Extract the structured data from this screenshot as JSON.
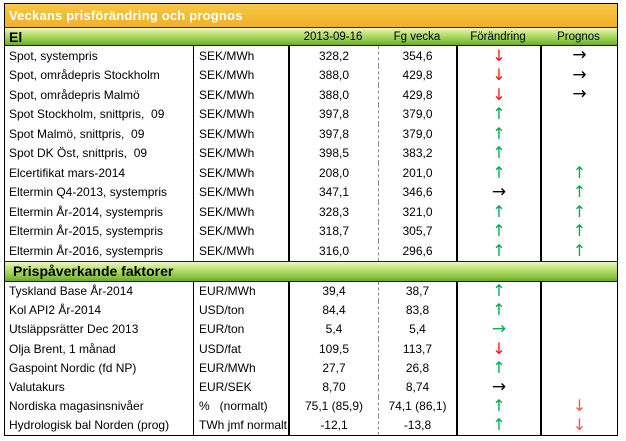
{
  "title": "Veckans prisförändring och prognos",
  "columns": {
    "current": "2013-09-16",
    "previous": "Fg vecka",
    "change": "Förändring",
    "forecast": "Prognos"
  },
  "arrows": {
    "up": {
      "glyph": "↑",
      "color": "#00A850",
      "orient": "vert"
    },
    "down": {
      "glyph": "↓",
      "color": "#FF1511",
      "orient": "vert"
    },
    "right": {
      "glyph": "→",
      "color": "#000000",
      "orient": "horiz"
    },
    "right-green": {
      "glyph": "→",
      "color": "#00B44A",
      "orient": "horiz"
    },
    "down-light": {
      "glyph": "↓",
      "color": "#FF5743",
      "orient": "vert"
    }
  },
  "colors": {
    "title_bar": "#F3BA33",
    "band_green_light": "#EEF7C6",
    "band_green_dark": "#66A82C",
    "arrow_up_green": "#00A850",
    "arrow_down_red": "#FF1511",
    "arrow_forecast_down_red": "#FF5743"
  },
  "sections": [
    {
      "name": "El",
      "rows": [
        {
          "label": "Spot, systempris",
          "unit": "SEK/MWh",
          "current": "328,2",
          "previous": "354,6",
          "change": "down",
          "forecast": "right"
        },
        {
          "label": "Spot, områdepris Stockholm",
          "unit": "SEK/MWh",
          "current": "388,0",
          "previous": "429,8",
          "change": "down",
          "forecast": "right"
        },
        {
          "label": "Spot, områdepris Malmö",
          "unit": "SEK/MWh",
          "current": "388,0",
          "previous": "429,8",
          "change": "down",
          "forecast": "right"
        },
        {
          "label": "Spot Stockholm, snittpris,  09",
          "unit": "SEK/MWh",
          "current": "397,8",
          "previous": "379,0",
          "change": "up",
          "forecast": ""
        },
        {
          "label": "Spot Malmö, snittpris,  09",
          "unit": "SEK/MWh",
          "current": "397,8",
          "previous": "379,0",
          "change": "up",
          "forecast": ""
        },
        {
          "label": "Spot DK Öst, snittpris,  09",
          "unit": "SEK/MWh",
          "current": "398,5",
          "previous": "383,2",
          "change": "up",
          "forecast": ""
        },
        {
          "label": "Elcertifikat mars-2014",
          "unit": "SEK/MWh",
          "current": "208,0",
          "previous": "201,0",
          "change": "up",
          "forecast": "up"
        },
        {
          "label": "Eltermin Q4-2013, systempris",
          "unit": "SEK/MWh",
          "current": "347,1",
          "previous": "346,6",
          "change": "right",
          "forecast": "up"
        },
        {
          "label": "Eltermin År-2014, systempris",
          "unit": "SEK/MWh",
          "current": "328,3",
          "previous": "321,0",
          "change": "up",
          "forecast": "up"
        },
        {
          "label": "Eltermin År-2015, systempris",
          "unit": "SEK/MWh",
          "current": "318,7",
          "previous": "305,7",
          "change": "up",
          "forecast": "up"
        },
        {
          "label": "Eltermin År-2016, systempris",
          "unit": "SEK/MWh",
          "current": "316,0",
          "previous": "296,6",
          "change": "up",
          "forecast": "up"
        }
      ]
    },
    {
      "name": "Prispåverkande faktorer",
      "rows": [
        {
          "label": "Tyskland Base År-2014",
          "unit": "EUR/MWh",
          "current": "39,4",
          "previous": "38,7",
          "change": "up",
          "forecast": ""
        },
        {
          "label": "Kol API2 År-2014",
          "unit": "USD/ton",
          "current": "84,4",
          "previous": "83,8",
          "change": "up",
          "forecast": ""
        },
        {
          "label": "Utsläppsrätter Dec 2013",
          "unit": "EUR/ton",
          "current": "5,4",
          "previous": "5,4",
          "change": "right-green",
          "forecast": ""
        },
        {
          "label": "Olja Brent, 1 månad",
          "unit": "USD/fat",
          "current": "109,5",
          "previous": "113,7",
          "change": "down",
          "forecast": ""
        },
        {
          "label": "Gaspoint Nordic (fd NP)",
          "unit": "EUR/MWh",
          "current": "27,7",
          "previous": "26,8",
          "change": "up",
          "forecast": ""
        },
        {
          "label": "Valutakurs",
          "unit": "EUR/SEK",
          "current": "8,70",
          "previous": "8,74",
          "change": "right",
          "forecast": ""
        },
        {
          "label": "Nordiska magasinsnivåer",
          "unit": "%   (normalt)",
          "current": "75,1 (85,9)",
          "previous": "74,1 (86,1)",
          "change": "up",
          "forecast": "down-light"
        },
        {
          "label": "Hydrologisk bal Norden (prog)",
          "unit": "TWh jmf normalt",
          "current": "-12,1",
          "previous": "-13,8",
          "change": "up",
          "forecast": "down-light"
        }
      ]
    }
  ]
}
